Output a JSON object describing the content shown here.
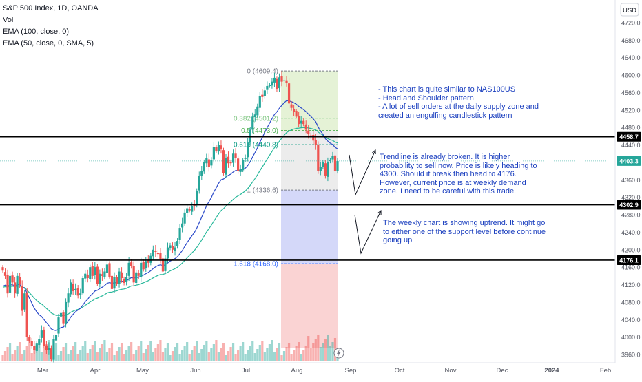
{
  "legend": {
    "symbol": "S&P 500 Index, 1D, OANDA",
    "vol": "Vol",
    "ema100": "EMA (100, close, 0)",
    "ema50": "EMA (50, close, 0, SMA, 5)"
  },
  "price_axis": {
    "currency": "USD",
    "ticks": [
      "4720.0",
      "4680.0",
      "4640.0",
      "4600.0",
      "4560.0",
      "4520.0",
      "4480.0",
      "4440.0",
      "4400.0",
      "4360.0",
      "4320.0",
      "4280.0",
      "4240.0",
      "4200.0",
      "4160.0",
      "4120.0",
      "4080.0",
      "4040.0",
      "4000.0",
      "3960.0"
    ],
    "badges": [
      "4458.7",
      "4403.3",
      "4302.9",
      "4176.1"
    ]
  },
  "time_axis": {
    "labels": [
      "Mar",
      "Apr",
      "May",
      "Jun",
      "Jul",
      "Aug",
      "Sep",
      "Oct",
      "Nov",
      "Dec",
      "2024",
      "Feb"
    ]
  },
  "fib": {
    "levels": [
      {
        "label": "0 (4609.4)",
        "price": 4609.4,
        "color": "#787b86"
      },
      {
        "label": "0.382 (4501.2)",
        "price": 4501.2,
        "color": "#81c784"
      },
      {
        "label": "0.5 (4473.0)",
        "price": 4473.0,
        "color": "#4caf50"
      },
      {
        "label": "0.618 (4440.8)",
        "price": 4440.8,
        "color": "#089981"
      },
      {
        "label": "1 (4336.6)",
        "price": 4336.6,
        "color": "#787b86"
      },
      {
        "label": "1.618 (4168.0)",
        "price": 4168.0,
        "color": "#2962ff"
      }
    ]
  },
  "annotations": {
    "note1": "- This chart is quite similar to NAS100US\n- Head and Shoulder pattern\n- A lot of sell orders at the daily supply zone and\ncreated an engulfing candlestick pattern",
    "note2": "Trendline is already broken. It is higher\nprobability to sell now. Price is likely heading to\n4300. Should it break then head to 4176.\nHowever, current price is at weekly demand\nzone. I need to be careful with this trade.",
    "note3": "The weekly chart is showing uptrend. It might go\nto either one of the support level before continue\ngoing up"
  },
  "colors": {
    "up": "#26a69a",
    "down": "#ef5350",
    "ema100": "#26b89a",
    "ema50": "#2a49c9",
    "note_text": "#1b3fbf",
    "fib_green": "#dcedc8",
    "fib_grey": "#e5e5e5",
    "fib_blue": "#c5cbf7",
    "fib_red": "#f8c4c4"
  },
  "chart_data": {
    "type": "candlestick",
    "title": "S&P 500 Index, 1D, OANDA",
    "ylim": [
      3950,
      4740
    ],
    "horizontal_levels": [
      4458.7,
      4302.9,
      4176.1
    ],
    "current_price": 4403.3,
    "closes": [
      4152,
      4140,
      4100,
      4140,
      4125,
      4100,
      4140,
      4120,
      4060,
      4100,
      4000,
      3990,
      3980,
      3970,
      3985,
      3995,
      4015,
      3980,
      3970,
      3975,
      3950,
      3995,
      4005,
      4045,
      4055,
      4030,
      4080,
      4100,
      4125,
      4105,
      4110,
      4095,
      4100,
      4135,
      4145,
      4135,
      4160,
      4140,
      4160,
      4122,
      4145,
      4140,
      4150,
      4166,
      4138,
      4110,
      4137,
      4122,
      4150,
      4135,
      4124,
      4138,
      4170,
      4163,
      4125,
      4148,
      4140,
      4170,
      4155,
      4174,
      4170,
      4186,
      4200,
      4195,
      4190,
      4178,
      4150,
      4180,
      4205,
      4210,
      4200,
      4205,
      4220,
      4250,
      4260,
      4285,
      4295,
      4290,
      4300,
      4300,
      4335,
      4370,
      4380,
      4400,
      4410,
      4390,
      4405,
      4435,
      4425,
      4440,
      4430,
      4375,
      4410,
      4398,
      4398,
      4420,
      4410,
      4380,
      4385,
      4405,
      4410,
      4445,
      4475,
      4505,
      4510,
      4528,
      4552,
      4550,
      4565,
      4575,
      4577,
      4585,
      4594,
      4567,
      4595,
      4585,
      4588,
      4582,
      4535,
      4525,
      4515,
      4505,
      4488,
      4495,
      4488,
      4475,
      4465,
      4460,
      4450,
      4440,
      4380,
      4390,
      4400,
      4370,
      4400,
      4405,
      4415,
      4380,
      4403
    ],
    "volume_scale": "relative (0-1)"
  }
}
